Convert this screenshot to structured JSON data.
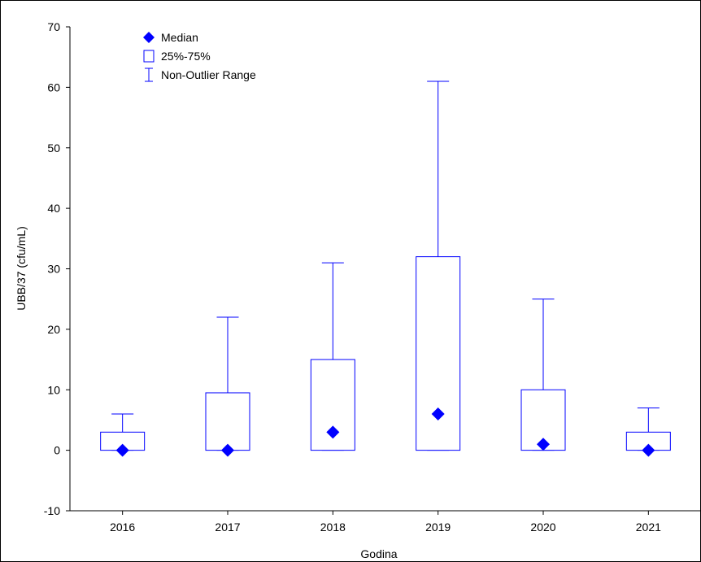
{
  "chart_data": {
    "type": "box",
    "xlabel": "Godina",
    "ylabel": "UBB/37 (cfu/mL)",
    "ylim": [
      -10,
      70
    ],
    "yticks": [
      -10,
      0,
      10,
      20,
      30,
      40,
      50,
      60,
      70
    ],
    "categories": [
      "2016",
      "2017",
      "2018",
      "2019",
      "2020",
      "2021"
    ],
    "boxes": [
      {
        "category": "2016",
        "median": 0,
        "q1": 0,
        "q3": 3,
        "whisker_low": 0,
        "whisker_high": 6
      },
      {
        "category": "2017",
        "median": 0,
        "q1": 0,
        "q3": 9.5,
        "whisker_low": 0,
        "whisker_high": 22
      },
      {
        "category": "2018",
        "median": 3,
        "q1": 0,
        "q3": 15,
        "whisker_low": 0,
        "whisker_high": 31
      },
      {
        "category": "2019",
        "median": 6,
        "q1": 0,
        "q3": 32,
        "whisker_low": 0,
        "whisker_high": 61
      },
      {
        "category": "2020",
        "median": 1,
        "q1": 0,
        "q3": 10,
        "whisker_low": 0,
        "whisker_high": 25
      },
      {
        "category": "2021",
        "median": 0,
        "q1": 0,
        "q3": 3,
        "whisker_low": 0,
        "whisker_high": 7
      }
    ],
    "legend": {
      "position": "top-left",
      "items": [
        {
          "marker": "diamond",
          "label": "Median"
        },
        {
          "marker": "box",
          "label": "25%-75%"
        },
        {
          "marker": "whisker",
          "label": "Non-Outlier Range"
        }
      ]
    },
    "grid": false,
    "color": "#0000ff"
  }
}
